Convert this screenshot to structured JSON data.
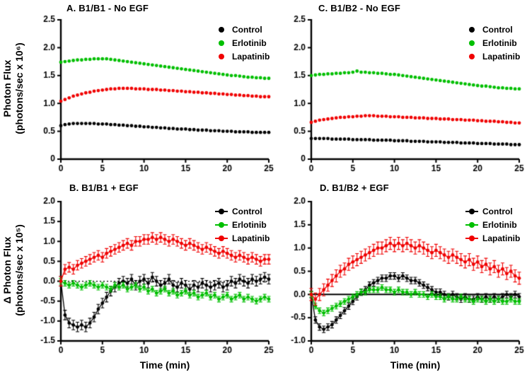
{
  "figure": {
    "ylabel_top": "Photon Flux\n(photons/sec x 10⁶)",
    "ylabel_bottom": "Δ Photon Flux\n(photons/sec x 10⁵)",
    "xlabel_left": "Time (min)",
    "xlabel_right": "Time (min)"
  },
  "chart_data": [
    {
      "id": "A",
      "type": "scatter",
      "title": "A. B1/B1 - No EGF",
      "xlabel": "Time (min)",
      "ylabel": "Photon Flux (photons/sec x 10⁶)",
      "x_start": 0,
      "x_step": 0.5,
      "xlim": [
        0,
        25
      ],
      "ylim": [
        0,
        2.5
      ],
      "xticks": [
        0,
        5,
        10,
        15,
        20,
        25
      ],
      "xtick_labels": [
        "0",
        "5",
        "10",
        "15",
        "20",
        "25"
      ],
      "yticks": [
        0,
        0.5,
        1.0,
        1.5,
        2.0,
        2.5
      ],
      "ytick_labels": [
        "0",
        "0.5",
        "1.0",
        "1.5",
        "2.0",
        "2.5"
      ],
      "zero_line": null,
      "connect": false,
      "marker_r": 2.4,
      "legend_position": "top-right",
      "series": [
        {
          "name": "Control",
          "color": "#000000",
          "err": 0,
          "values": [
            0.6,
            0.62,
            0.63,
            0.64,
            0.64,
            0.64,
            0.64,
            0.64,
            0.64,
            0.63,
            0.63,
            0.63,
            0.62,
            0.62,
            0.61,
            0.61,
            0.6,
            0.6,
            0.59,
            0.59,
            0.58,
            0.58,
            0.57,
            0.57,
            0.56,
            0.56,
            0.55,
            0.55,
            0.54,
            0.54,
            0.54,
            0.53,
            0.53,
            0.52,
            0.52,
            0.52,
            0.51,
            0.51,
            0.51,
            0.5,
            0.5,
            0.5,
            0.49,
            0.49,
            0.49,
            0.49,
            0.48,
            0.48,
            0.48,
            0.48,
            0.48
          ]
        },
        {
          "name": "Erlotinib",
          "color": "#00bf00",
          "err": 0,
          "values": [
            1.74,
            1.75,
            1.76,
            1.77,
            1.78,
            1.78,
            1.79,
            1.79,
            1.8,
            1.8,
            1.8,
            1.8,
            1.79,
            1.78,
            1.77,
            1.76,
            1.75,
            1.74,
            1.73,
            1.72,
            1.71,
            1.7,
            1.69,
            1.68,
            1.67,
            1.66,
            1.65,
            1.64,
            1.63,
            1.62,
            1.61,
            1.6,
            1.59,
            1.58,
            1.57,
            1.56,
            1.55,
            1.54,
            1.53,
            1.52,
            1.51,
            1.5,
            1.5,
            1.49,
            1.48,
            1.47,
            1.47,
            1.46,
            1.46,
            1.45,
            1.45
          ]
        },
        {
          "name": "Lapatinib",
          "color": "#f00000",
          "err": 0,
          "values": [
            1.04,
            1.07,
            1.1,
            1.13,
            1.15,
            1.17,
            1.19,
            1.2,
            1.22,
            1.23,
            1.24,
            1.25,
            1.26,
            1.26,
            1.27,
            1.27,
            1.27,
            1.27,
            1.26,
            1.26,
            1.26,
            1.25,
            1.25,
            1.25,
            1.24,
            1.24,
            1.23,
            1.23,
            1.22,
            1.22,
            1.21,
            1.21,
            1.2,
            1.2,
            1.19,
            1.19,
            1.18,
            1.18,
            1.17,
            1.17,
            1.16,
            1.16,
            1.15,
            1.15,
            1.14,
            1.14,
            1.13,
            1.13,
            1.12,
            1.12,
            1.12
          ]
        }
      ]
    },
    {
      "id": "C",
      "type": "scatter",
      "title": "C. B1/B2 - No EGF",
      "xlabel": "Time (min)",
      "ylabel": "Photon Flux (photons/sec x 10⁶)",
      "x_start": 0,
      "x_step": 0.5,
      "xlim": [
        0,
        25
      ],
      "ylim": [
        0,
        2.5
      ],
      "xticks": [
        0,
        5,
        10,
        15,
        20,
        25
      ],
      "xtick_labels": [
        "0",
        "5",
        "10",
        "15",
        "20",
        "25"
      ],
      "yticks": [
        0,
        0.5,
        1.0,
        1.5,
        2.0,
        2.5
      ],
      "ytick_labels": [
        "0",
        "0.5",
        "1.0",
        "1.5",
        "2.0",
        "2.5"
      ],
      "zero_line": null,
      "connect": false,
      "marker_r": 2.4,
      "legend_position": "top-right",
      "series": [
        {
          "name": "Control",
          "color": "#000000",
          "err": 0,
          "values": [
            0.37,
            0.37,
            0.37,
            0.37,
            0.37,
            0.36,
            0.36,
            0.36,
            0.36,
            0.36,
            0.35,
            0.35,
            0.35,
            0.35,
            0.35,
            0.34,
            0.34,
            0.34,
            0.34,
            0.34,
            0.33,
            0.33,
            0.33,
            0.33,
            0.32,
            0.32,
            0.32,
            0.32,
            0.31,
            0.31,
            0.31,
            0.31,
            0.3,
            0.3,
            0.3,
            0.3,
            0.29,
            0.29,
            0.29,
            0.29,
            0.28,
            0.28,
            0.28,
            0.28,
            0.27,
            0.27,
            0.27,
            0.27,
            0.26,
            0.26,
            0.26
          ]
        },
        {
          "name": "Erlotinib",
          "color": "#00bf00",
          "err": 0,
          "values": [
            1.5,
            1.51,
            1.52,
            1.52,
            1.53,
            1.53,
            1.54,
            1.54,
            1.55,
            1.55,
            1.56,
            1.58,
            1.56,
            1.56,
            1.55,
            1.55,
            1.54,
            1.54,
            1.53,
            1.52,
            1.52,
            1.51,
            1.5,
            1.49,
            1.48,
            1.47,
            1.46,
            1.45,
            1.44,
            1.43,
            1.42,
            1.41,
            1.4,
            1.39,
            1.38,
            1.37,
            1.36,
            1.35,
            1.34,
            1.33,
            1.32,
            1.31,
            1.31,
            1.3,
            1.29,
            1.28,
            1.28,
            1.27,
            1.27,
            1.26,
            1.26
          ]
        },
        {
          "name": "Lapatinib",
          "color": "#f00000",
          "err": 0,
          "values": [
            0.66,
            0.68,
            0.7,
            0.71,
            0.72,
            0.73,
            0.74,
            0.75,
            0.75,
            0.76,
            0.76,
            0.77,
            0.77,
            0.78,
            0.78,
            0.78,
            0.77,
            0.77,
            0.77,
            0.76,
            0.76,
            0.76,
            0.75,
            0.75,
            0.75,
            0.74,
            0.74,
            0.74,
            0.73,
            0.73,
            0.73,
            0.72,
            0.72,
            0.72,
            0.71,
            0.71,
            0.71,
            0.7,
            0.7,
            0.7,
            0.69,
            0.69,
            0.68,
            0.68,
            0.68,
            0.67,
            0.67,
            0.66,
            0.66,
            0.65,
            0.65
          ]
        }
      ]
    },
    {
      "id": "B",
      "type": "line",
      "title": "B. B1/B1 + EGF",
      "xlabel": "Time (min)",
      "ylabel": "Δ Photon Flux (photons/sec x 10⁵)",
      "x_start": 0,
      "x_step": 0.5,
      "xlim": [
        0,
        25
      ],
      "ylim": [
        -1.5,
        2.0
      ],
      "xticks": [
        0,
        5,
        10,
        15,
        20,
        25
      ],
      "xtick_labels": [
        "0",
        "5",
        "10",
        "15",
        "20",
        "25"
      ],
      "yticks": [
        -1.5,
        -1.0,
        -0.5,
        0.0,
        0.5,
        1.0,
        1.5,
        2.0
      ],
      "ytick_labels": [
        "-1.5",
        "-1.0",
        "-0.5",
        "0.0",
        "0.5",
        "1.0",
        "1.5",
        "2.0"
      ],
      "zero_line": "dotted",
      "connect": true,
      "marker_r": 2.4,
      "legend_position": "top-right",
      "series": [
        {
          "name": "Control",
          "color": "#000000",
          "err": 0.12,
          "values": [
            0,
            -0.85,
            -1.05,
            -1.1,
            -1.15,
            -1.1,
            -1.15,
            -1.05,
            -0.9,
            -0.7,
            -0.55,
            -0.4,
            -0.25,
            -0.15,
            -0.05,
            0.0,
            -0.05,
            0.05,
            -0.1,
            0.0,
            0.05,
            -0.05,
            0.1,
            0.0,
            -0.1,
            -0.05,
            0.05,
            -0.1,
            -0.15,
            -0.05,
            -0.1,
            -0.2,
            -0.1,
            -0.15,
            -0.05,
            -0.1,
            -0.15,
            -0.1,
            -0.05,
            -0.15,
            -0.1,
            0.0,
            -0.05,
            0.05,
            0.0,
            -0.05,
            0.05,
            0.0,
            0.05,
            0.1,
            0.05
          ]
        },
        {
          "name": "Erlotinib",
          "color": "#00bf00",
          "err": 0.07,
          "values": [
            0,
            -0.05,
            -0.1,
            -0.05,
            -0.1,
            -0.15,
            -0.1,
            -0.05,
            -0.1,
            -0.15,
            -0.1,
            -0.15,
            -0.2,
            -0.1,
            -0.15,
            -0.1,
            -0.2,
            -0.15,
            -0.1,
            -0.2,
            -0.15,
            -0.25,
            -0.2,
            -0.3,
            -0.25,
            -0.2,
            -0.3,
            -0.25,
            -0.35,
            -0.3,
            -0.25,
            -0.35,
            -0.3,
            -0.4,
            -0.35,
            -0.3,
            -0.4,
            -0.35,
            -0.45,
            -0.4,
            -0.35,
            -0.45,
            -0.4,
            -0.35,
            -0.45,
            -0.4,
            -0.45,
            -0.5,
            -0.45,
            -0.4,
            -0.45
          ]
        },
        {
          "name": "Lapatinib",
          "color": "#f00000",
          "err": 0.12,
          "values": [
            0,
            0.3,
            0.35,
            0.3,
            0.4,
            0.45,
            0.5,
            0.55,
            0.6,
            0.65,
            0.6,
            0.7,
            0.75,
            0.8,
            0.85,
            0.9,
            0.95,
            0.9,
            1.0,
            1.0,
            1.05,
            1.05,
            1.1,
            1.05,
            1.1,
            1.05,
            1.0,
            1.05,
            1.0,
            0.95,
            0.9,
            0.95,
            0.9,
            0.85,
            0.8,
            0.85,
            0.8,
            0.75,
            0.7,
            0.75,
            0.7,
            0.65,
            0.6,
            0.65,
            0.6,
            0.55,
            0.6,
            0.55,
            0.5,
            0.55,
            0.55
          ]
        }
      ]
    },
    {
      "id": "D",
      "type": "line",
      "title": "D. B1/B2 + EGF",
      "xlabel": "Time (min)",
      "ylabel": "Δ Photon Flux (photons/sec x 10⁵)",
      "x_start": 0,
      "x_step": 0.5,
      "xlim": [
        0,
        25
      ],
      "ylim": [
        -1.0,
        2.0
      ],
      "xticks": [
        0,
        5,
        10,
        15,
        20,
        25
      ],
      "xtick_labels": [
        "0",
        "5",
        "10",
        "15",
        "20",
        "25"
      ],
      "yticks": [
        -1.0,
        -0.5,
        0.0,
        0.5,
        1.0,
        1.5,
        2.0
      ],
      "ytick_labels": [
        "-1.0",
        "-0.5",
        "0.0",
        "0.5",
        "1.0",
        "1.5",
        "2.0"
      ],
      "zero_line": "solid",
      "connect": true,
      "marker_r": 2.4,
      "legend_position": "top-right",
      "series": [
        {
          "name": "Control",
          "color": "#000000",
          "err": 0.07,
          "values": [
            0,
            -0.55,
            -0.7,
            -0.75,
            -0.7,
            -0.65,
            -0.55,
            -0.45,
            -0.35,
            -0.25,
            -0.15,
            -0.05,
            0.05,
            0.1,
            0.2,
            0.25,
            0.3,
            0.35,
            0.35,
            0.4,
            0.4,
            0.35,
            0.4,
            0.35,
            0.3,
            0.3,
            0.25,
            0.2,
            0.15,
            0.1,
            0.05,
            0.05,
            0.0,
            -0.05,
            0.0,
            -0.05,
            -0.1,
            -0.05,
            -0.1,
            -0.1,
            -0.05,
            -0.1,
            -0.05,
            -0.1,
            -0.05,
            -0.1,
            -0.05,
            0.0,
            -0.05,
            0.0,
            -0.05
          ]
        },
        {
          "name": "Erlotinib",
          "color": "#00bf00",
          "err": 0.06,
          "values": [
            0,
            -0.25,
            -0.35,
            -0.4,
            -0.35,
            -0.3,
            -0.25,
            -0.2,
            -0.15,
            -0.1,
            -0.05,
            0.0,
            0.05,
            0.05,
            0.1,
            0.1,
            0.1,
            0.15,
            0.1,
            0.1,
            0.05,
            0.1,
            0.05,
            0.05,
            0.0,
            0.05,
            0.0,
            0.0,
            -0.05,
            0.0,
            -0.05,
            -0.05,
            -0.1,
            -0.05,
            -0.1,
            -0.1,
            -0.05,
            -0.1,
            -0.1,
            -0.15,
            -0.1,
            -0.1,
            -0.15,
            -0.1,
            -0.15,
            -0.1,
            -0.15,
            -0.15,
            -0.1,
            -0.15,
            -0.15
          ]
        },
        {
          "name": "Lapatinib",
          "color": "#f00000",
          "err": 0.13,
          "values": [
            0,
            -0.1,
            0.0,
            0.1,
            0.2,
            0.3,
            0.4,
            0.5,
            0.55,
            0.65,
            0.7,
            0.75,
            0.8,
            0.85,
            0.9,
            0.95,
            1.0,
            1.0,
            1.05,
            1.1,
            1.05,
            1.1,
            1.05,
            1.1,
            1.05,
            1.0,
            1.05,
            1.0,
            0.95,
            0.9,
            0.95,
            0.9,
            0.85,
            0.8,
            0.85,
            0.8,
            0.75,
            0.7,
            0.75,
            0.65,
            0.7,
            0.6,
            0.65,
            0.55,
            0.6,
            0.5,
            0.55,
            0.45,
            0.5,
            0.4,
            0.35
          ]
        }
      ]
    }
  ]
}
